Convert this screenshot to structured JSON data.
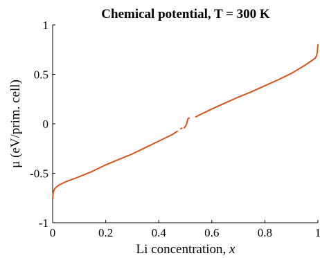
{
  "chart_data": {
    "type": "line",
    "title": "Chemical potential, T = 300 K",
    "xlabel": "Li concentration, ",
    "xlabel_var": "x",
    "ylabel": "μ (eV/prim. cell)",
    "xlim": [
      0,
      1
    ],
    "ylim": [
      -1,
      1
    ],
    "xticks": [
      0,
      0.2,
      0.4,
      0.6,
      0.8,
      1
    ],
    "xtick_labels": [
      "0",
      "0.2",
      "0.4",
      "0.6",
      "0.8",
      "1"
    ],
    "yticks": [
      -1,
      -0.5,
      0,
      0.5,
      1
    ],
    "ytick_labels": [
      "-1",
      "-0.5",
      "0",
      "0.5",
      "1"
    ],
    "grid": false,
    "color": "#D95319",
    "series": [
      {
        "segments": [
          [
            [
              0.0,
              -0.76
            ],
            [
              0.002,
              -0.7
            ],
            [
              0.005,
              -0.67
            ],
            [
              0.01,
              -0.65
            ],
            [
              0.02,
              -0.625
            ],
            [
              0.05,
              -0.585
            ],
            [
              0.1,
              -0.535
            ],
            [
              0.15,
              -0.48
            ],
            [
              0.2,
              -0.415
            ],
            [
              0.25,
              -0.36
            ],
            [
              0.3,
              -0.305
            ],
            [
              0.35,
              -0.24
            ],
            [
              0.4,
              -0.175
            ],
            [
              0.45,
              -0.11
            ],
            [
              0.47,
              -0.075
            ]
          ],
          [
            [
              0.483,
              -0.05
            ],
            [
              0.487,
              -0.045
            ]
          ],
          [
            [
              0.496,
              -0.04
            ],
            [
              0.5,
              -0.03
            ],
            [
              0.505,
              0.0
            ],
            [
              0.51,
              0.05
            ],
            [
              0.515,
              0.06
            ]
          ],
          [
            [
              0.54,
              0.07
            ],
            [
              0.55,
              0.085
            ],
            [
              0.6,
              0.15
            ],
            [
              0.65,
              0.21
            ],
            [
              0.7,
              0.27
            ],
            [
              0.75,
              0.325
            ],
            [
              0.8,
              0.385
            ],
            [
              0.85,
              0.445
            ],
            [
              0.9,
              0.51
            ],
            [
              0.95,
              0.59
            ],
            [
              0.98,
              0.645
            ],
            [
              0.99,
              0.665
            ],
            [
              0.995,
              0.69
            ],
            [
              0.998,
              0.73
            ],
            [
              1.0,
              0.8
            ]
          ]
        ]
      }
    ]
  }
}
